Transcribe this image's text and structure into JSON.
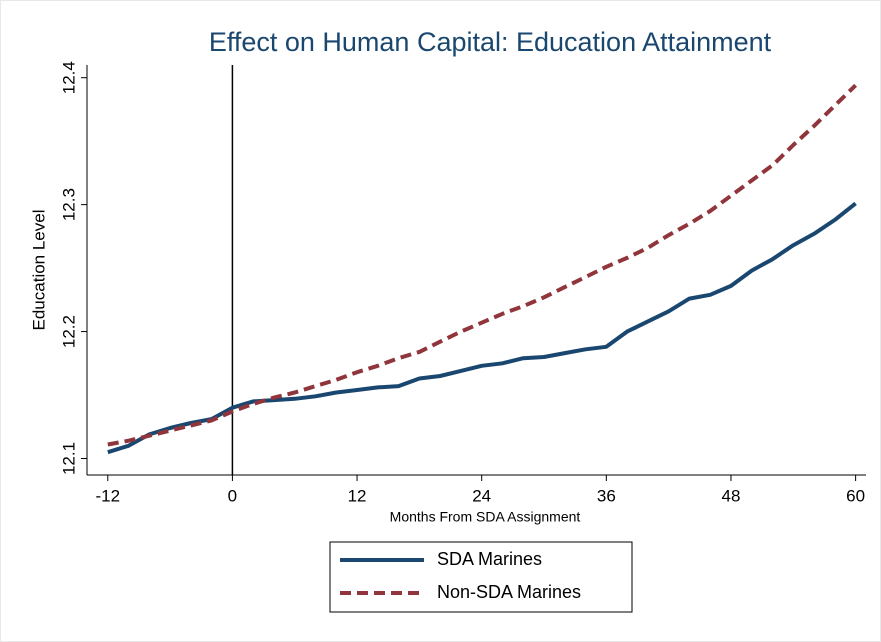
{
  "chart_data": {
    "type": "line",
    "title": "Effect on Human Capital: Education Attainment",
    "x_label": "Months From SDA Assignment",
    "y_label": "Education Level",
    "x": [
      -12,
      -10,
      -8,
      -6,
      -4,
      -2,
      0,
      2,
      4,
      6,
      8,
      10,
      12,
      14,
      16,
      18,
      20,
      22,
      24,
      26,
      28,
      30,
      32,
      34,
      36,
      38,
      40,
      42,
      44,
      46,
      48,
      50,
      52,
      54,
      56,
      58,
      60
    ],
    "series": [
      {
        "name": "SDA Marines",
        "color": "#1a476f",
        "dash": "solid",
        "values": [
          12.105,
          12.11,
          12.119,
          12.124,
          12.128,
          12.131,
          12.14,
          12.145,
          12.146,
          12.147,
          12.149,
          12.152,
          12.154,
          12.156,
          12.157,
          12.163,
          12.165,
          12.169,
          12.173,
          12.175,
          12.179,
          12.18,
          12.183,
          12.186,
          12.188,
          12.2,
          12.208,
          12.216,
          12.226,
          12.229,
          12.236,
          12.248,
          12.257,
          12.268,
          12.277,
          12.288,
          12.301
        ]
      },
      {
        "name": "Non-SDA Marines",
        "color": "#90353b",
        "dash": "dashed",
        "values": [
          12.111,
          12.114,
          12.118,
          12.122,
          12.126,
          12.13,
          12.137,
          12.143,
          12.148,
          12.152,
          12.157,
          12.162,
          12.168,
          12.173,
          12.179,
          12.184,
          12.192,
          12.2,
          12.207,
          12.214,
          12.22,
          12.227,
          12.235,
          12.243,
          12.251,
          12.258,
          12.266,
          12.276,
          12.285,
          12.295,
          12.307,
          12.319,
          12.331,
          12.347,
          12.362,
          12.378,
          12.394
        ]
      }
    ],
    "vline": 0,
    "xlim": [
      -14,
      61
    ],
    "xticks": [
      -12,
      0,
      12,
      24,
      36,
      48,
      60
    ],
    "ylim": [
      12.087,
      12.41
    ],
    "yticks": [
      12.1,
      12.2,
      12.3,
      12.4
    ],
    "legend": "bottom"
  }
}
